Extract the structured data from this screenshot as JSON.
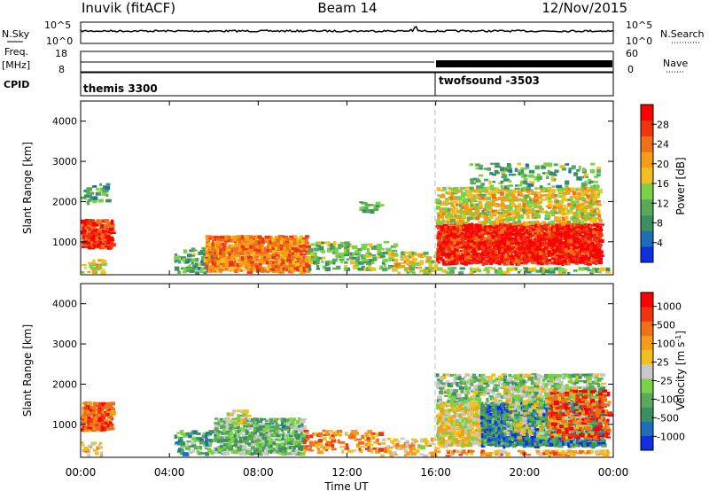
{
  "header": {
    "radar": "Inuvik (fitACF)",
    "beam": "Beam 14",
    "date": "12/Nov/2015"
  },
  "strip_labels": {
    "nsky": "N.Sky",
    "freq_line1": "Freq.",
    "freq_line2": "[MHz]",
    "cpid": "CPID",
    "nsearch": "N.Search",
    "nave": "Nave"
  },
  "strip_ticks": {
    "noise_top_left": "10^5",
    "noise_bottom_left": "10^0",
    "noise_top_right": "10^5",
    "noise_bottom_right": "10^0",
    "freq_top": "18",
    "freq_bottom": "8",
    "nave_top": "60",
    "nave_bottom": "0"
  },
  "cpid_segments": [
    {
      "label": "themis 3300",
      "start_hour": 0
    },
    {
      "label": "twofsound -3503",
      "start_hour": 16
    }
  ],
  "colors": {
    "scale": [
      "#1030e0",
      "#1a6fb6",
      "#3c8f5f",
      "#5aa85a",
      "#7ad048",
      "#c8c8c8",
      "#f0c020",
      "#f59d18",
      "#f07018",
      "#ee3510",
      "#ff0000"
    ]
  },
  "chart_data": [
    {
      "type": "heatmap",
      "name": "power",
      "x_range_hours": [
        0,
        24
      ],
      "ylim": [
        180,
        4500
      ],
      "ylabel": "Slant Range [km]",
      "yticks": [
        "1000",
        "2000",
        "3000",
        "4000"
      ],
      "colorbar": {
        "label": "Power [dB]",
        "ticks": [
          "4",
          "8",
          "12",
          "16",
          "20",
          "24",
          "28"
        ],
        "colors": [
          "#1030e0",
          "#1a6fb6",
          "#3c8f5f",
          "#5aa85a",
          "#7ad048",
          "#f0c020",
          "#f59d18",
          "#f07018",
          "#ee3510",
          "#ff0000"
        ]
      },
      "regions": [
        {
          "t": [
            0.0,
            1.4
          ],
          "r": [
            900,
            1600
          ],
          "level": 0.88,
          "density": 0.9
        },
        {
          "t": [
            0.0,
            1.2
          ],
          "r": [
            2000,
            2500
          ],
          "level": 0.3,
          "density": 0.25
        },
        {
          "t": [
            0.0,
            1.0
          ],
          "r": [
            200,
            600
          ],
          "level": 0.55,
          "density": 0.45
        },
        {
          "t": [
            4.2,
            6.0
          ],
          "r": [
            200,
            900
          ],
          "level": 0.35,
          "density": 0.45
        },
        {
          "t": [
            5.6,
            10.2
          ],
          "r": [
            300,
            1200
          ],
          "level": 0.72,
          "density": 0.9
        },
        {
          "t": [
            10.2,
            14.2
          ],
          "r": [
            350,
            1050
          ],
          "level": 0.4,
          "density": 0.35
        },
        {
          "t": [
            14.0,
            16.0
          ],
          "r": [
            200,
            800
          ],
          "level": 0.55,
          "density": 0.45
        },
        {
          "t": [
            12.5,
            13.5
          ],
          "r": [
            1800,
            2100
          ],
          "level": 0.35,
          "density": 0.3
        },
        {
          "t": [
            16.0,
            23.4
          ],
          "r": [
            500,
            1500
          ],
          "level": 0.92,
          "density": 0.95
        },
        {
          "t": [
            16.0,
            23.4
          ],
          "r": [
            1500,
            2400
          ],
          "level": 0.55,
          "density": 0.6
        },
        {
          "t": [
            17.5,
            23.3
          ],
          "r": [
            2400,
            3000
          ],
          "level": 0.35,
          "density": 0.25
        },
        {
          "t": [
            16.0,
            24.0
          ],
          "r": [
            200,
            400
          ],
          "level": 0.4,
          "density": 0.5
        }
      ]
    },
    {
      "type": "heatmap",
      "name": "velocity",
      "x_range_hours": [
        0,
        24
      ],
      "ylim": [
        180,
        4500
      ],
      "ylabel": "Slant Range [km]",
      "xlabel": "Time UT",
      "xticks": [
        "00:00",
        "04:00",
        "08:00",
        "12:00",
        "16:00",
        "20:00",
        "00:00"
      ],
      "yticks": [
        "1000",
        "2000",
        "3000",
        "4000"
      ],
      "colorbar": {
        "label": "Velocity [m s^-1]",
        "ticks": [
          "1000",
          "500",
          "100",
          "25",
          "-25",
          "-100",
          "-500",
          "-1000"
        ],
        "colors": [
          "#1030e0",
          "#1a6fb6",
          "#3c8f5f",
          "#5aa85a",
          "#7ad048",
          "#c8c8c8",
          "#f0c020",
          "#f59d18",
          "#f07018",
          "#ee3510",
          "#ff0000"
        ]
      },
      "regions": [
        {
          "t": [
            0.0,
            1.4
          ],
          "r": [
            900,
            1600
          ],
          "level": 0.82,
          "density": 0.9
        },
        {
          "t": [
            0.0,
            1.0
          ],
          "r": [
            200,
            600
          ],
          "level": 0.62,
          "density": 0.35
        },
        {
          "t": [
            4.2,
            6.2
          ],
          "r": [
            300,
            900
          ],
          "level": 0.3,
          "density": 0.4
        },
        {
          "t": [
            6.0,
            10.0
          ],
          "r": [
            300,
            1200
          ],
          "level": 0.35,
          "density": 0.75
        },
        {
          "t": [
            6.5,
            7.5
          ],
          "r": [
            1000,
            1400
          ],
          "level": 0.5,
          "density": 0.55
        },
        {
          "t": [
            10.0,
            13.5
          ],
          "r": [
            350,
            900
          ],
          "level": 0.72,
          "density": 0.4
        },
        {
          "t": [
            13.5,
            16.0
          ],
          "r": [
            200,
            700
          ],
          "level": 0.6,
          "density": 0.35
        },
        {
          "t": [
            16.0,
            18.0
          ],
          "r": [
            500,
            1600
          ],
          "level": 0.55,
          "density": 0.85
        },
        {
          "t": [
            18.0,
            23.5
          ],
          "r": [
            500,
            1600
          ],
          "level": 0.2,
          "density": 0.95
        },
        {
          "t": [
            16.0,
            23.5
          ],
          "r": [
            1600,
            2300
          ],
          "level": 0.4,
          "density": 0.55
        },
        {
          "t": [
            19.0,
            23.0
          ],
          "r": [
            700,
            2000
          ],
          "level": 0.5,
          "density": 0.35
        },
        {
          "t": [
            21.0,
            23.8
          ],
          "r": [
            700,
            1900
          ],
          "level": 0.85,
          "density": 0.45
        },
        {
          "t": [
            16.0,
            24.0
          ],
          "r": [
            200,
            400
          ],
          "level": 0.68,
          "density": 0.5
        }
      ]
    }
  ]
}
